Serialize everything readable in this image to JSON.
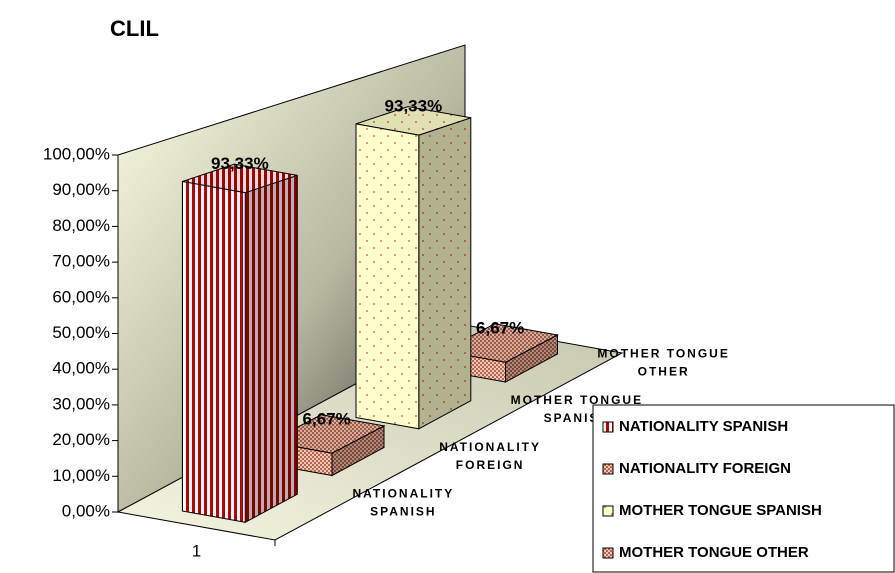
{
  "chart_data": {
    "type": "bar3d",
    "title": "CLIL",
    "categories": [
      "1"
    ],
    "series": [
      {
        "name": "NATIONALITY SPANISH",
        "color": "#c00000",
        "pattern": "stripes",
        "values": [
          93.33
        ],
        "value_labels": [
          "93,33%"
        ]
      },
      {
        "name": "NATIONALITY FOREIGN",
        "color": "#b5654a",
        "pattern": "checks",
        "values": [
          6.67
        ],
        "value_labels": [
          "6,67%"
        ]
      },
      {
        "name": "MOTHER TONGUE SPANISH",
        "color": "#ffffcc",
        "pattern": "dots",
        "values": [
          93.33
        ],
        "value_labels": [
          "93,33%"
        ]
      },
      {
        "name": "MOTHER TONGUE OTHER",
        "color": "#b5654a",
        "pattern": "checks",
        "values": [
          6.67
        ],
        "value_labels": [
          "6,67%"
        ]
      }
    ],
    "ylim": [
      0,
      100
    ],
    "yticks": [
      {
        "value": 0,
        "label": "0,00%"
      },
      {
        "value": 10,
        "label": "10,00%"
      },
      {
        "value": 20,
        "label": "20,00%"
      },
      {
        "value": 30,
        "label": "30,00%"
      },
      {
        "value": 40,
        "label": "40,00%"
      },
      {
        "value": 50,
        "label": "50,00%"
      },
      {
        "value": 60,
        "label": "60,00%"
      },
      {
        "value": 70,
        "label": "70,00%"
      },
      {
        "value": 80,
        "label": "80,00%"
      },
      {
        "value": 90,
        "label": "90,00%"
      },
      {
        "value": 100,
        "label": "100,00%"
      }
    ],
    "legend": "right"
  }
}
